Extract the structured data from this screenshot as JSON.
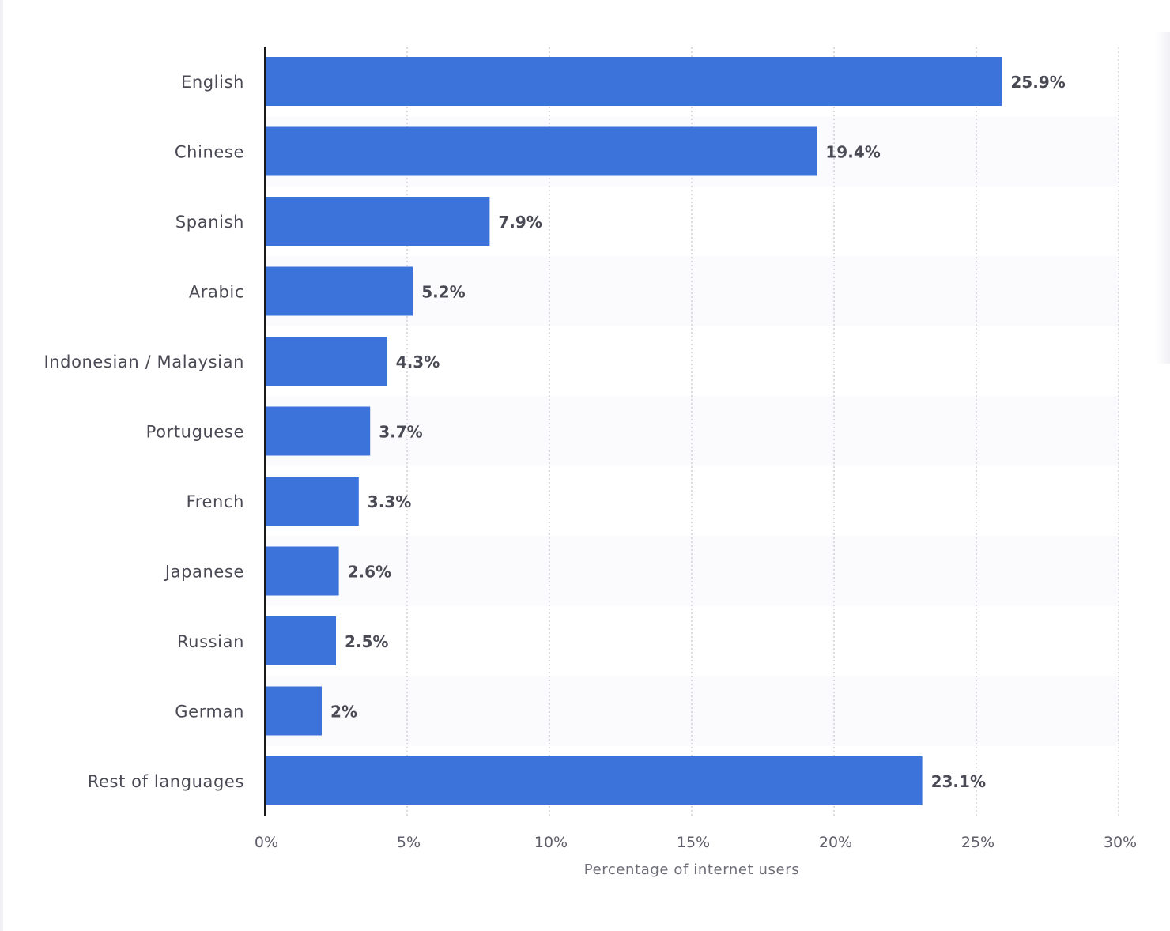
{
  "chart_data": {
    "type": "bar",
    "orientation": "horizontal",
    "categories": [
      "English",
      "Chinese",
      "Spanish",
      "Arabic",
      "Indonesian / Malaysian",
      "Portuguese",
      "French",
      "Japanese",
      "Russian",
      "German",
      "Rest of languages"
    ],
    "values": [
      25.9,
      19.4,
      7.9,
      5.2,
      4.3,
      3.7,
      3.3,
      2.6,
      2.5,
      2,
      23.1
    ],
    "value_labels": [
      "25.9%",
      "19.4%",
      "7.9%",
      "5.2%",
      "4.3%",
      "3.7%",
      "3.3%",
      "2.6%",
      "2.5%",
      "2%",
      "23.1%"
    ],
    "xlabel": "Percentage of internet users",
    "ylabel": "",
    "xlim": [
      0,
      30
    ],
    "x_ticks": [
      0,
      5,
      10,
      15,
      20,
      25,
      30
    ],
    "x_tick_labels": [
      "0%",
      "5%",
      "10%",
      "15%",
      "20%",
      "25%",
      "30%"
    ],
    "grid": "vertical dotted",
    "bar_color": "#3b73db",
    "band_color": "#fbfafd"
  }
}
